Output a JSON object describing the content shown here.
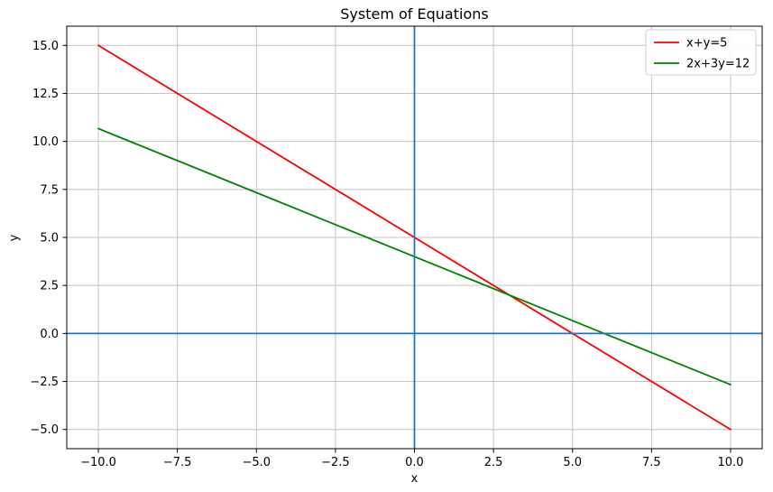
{
  "figure": {
    "background": "#ffffff",
    "text_color": "#000000"
  },
  "chart_data": {
    "type": "line",
    "title": "System of Equations",
    "xlabel": "x",
    "ylabel": "y",
    "xlim": [
      -11,
      11
    ],
    "ylim": [
      -6,
      16
    ],
    "xticks": [
      -10.0,
      -7.5,
      -5.0,
      -2.5,
      0.0,
      2.5,
      5.0,
      7.5,
      10.0
    ],
    "yticks": [
      -5.0,
      -2.5,
      0.0,
      2.5,
      5.0,
      7.5,
      10.0,
      12.5,
      15.0
    ],
    "tick_decimals": 1,
    "grid": true,
    "grid_color": "#c4c4c4",
    "spine_color": "#000000",
    "legend": {
      "position": "upper right",
      "background": "#ffffff",
      "border_color": "#cccccc"
    },
    "series": [
      {
        "name": "x+y=5",
        "color": "#ff0000",
        "x": [
          -10,
          10
        ],
        "y": [
          15,
          -5
        ]
      },
      {
        "name": "2x+3y=12",
        "color": "#008000",
        "x": [
          -10,
          10
        ],
        "y": [
          10.6667,
          -2.6667
        ]
      }
    ],
    "axis_lines": [
      {
        "orientation": "horizontal",
        "value": 0,
        "color": "#1f77b4"
      },
      {
        "orientation": "vertical",
        "value": 0,
        "color": "#1f77b4"
      }
    ]
  }
}
